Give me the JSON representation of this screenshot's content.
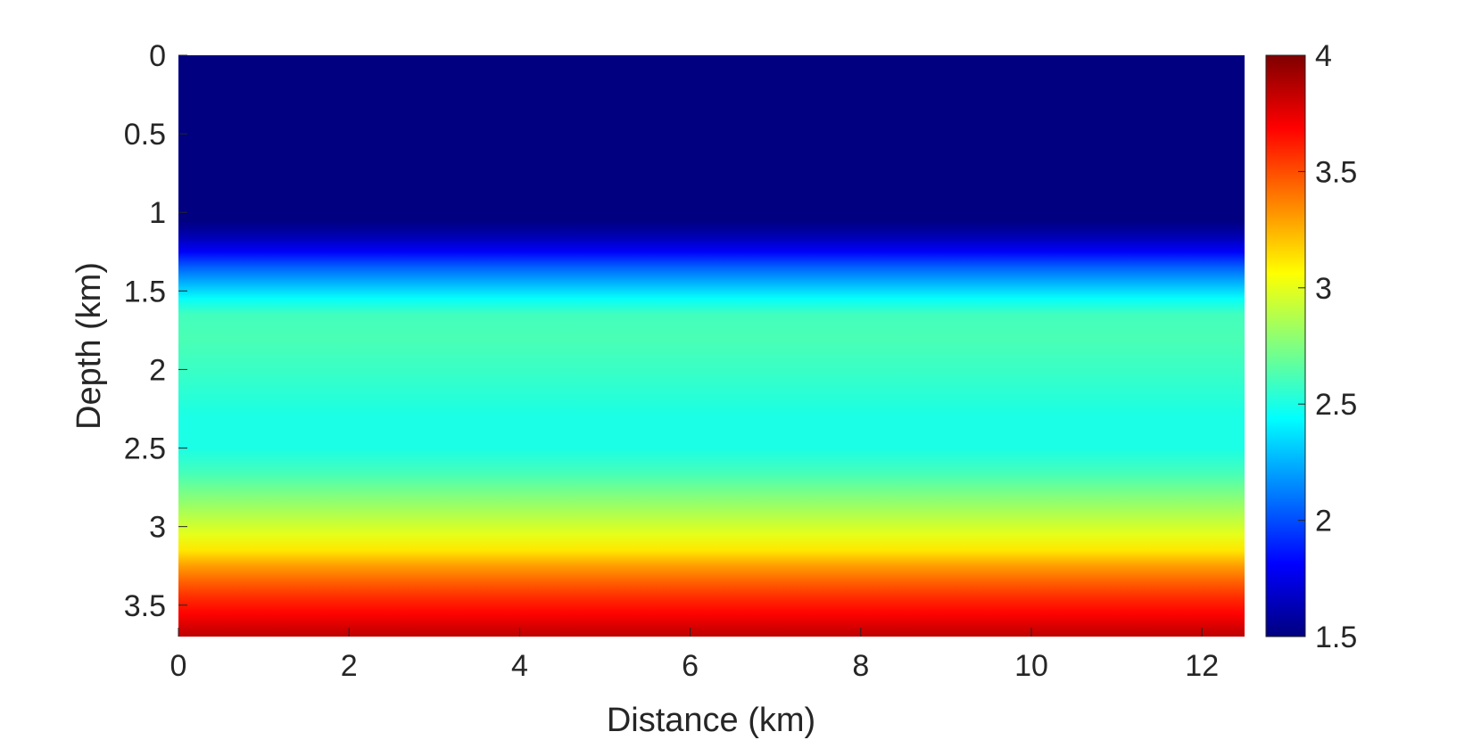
{
  "chart_data": {
    "type": "heatmap",
    "title": "",
    "xlabel": "Distance (km)",
    "ylabel": "Depth (km)",
    "xlim": [
      0,
      12.5
    ],
    "ylim": [
      0,
      3.7
    ],
    "y_reversed": true,
    "xticks": [
      0,
      2,
      4,
      6,
      8,
      10,
      12
    ],
    "xtick_labels": [
      "0",
      "2",
      "4",
      "6",
      "8",
      "10",
      "12"
    ],
    "yticks": [
      0,
      0.5,
      1,
      1.5,
      2,
      2.5,
      3,
      3.5
    ],
    "ytick_labels": [
      "0",
      "0.5",
      "1",
      "1.5",
      "2",
      "2.5",
      "3",
      "3.5"
    ],
    "colormap": "jet",
    "clim": [
      1.5,
      4
    ],
    "colorbar": {
      "position": "right",
      "ticks": [
        1.5,
        2,
        2.5,
        3,
        3.5,
        4
      ],
      "tick_labels": [
        "1.5",
        "2",
        "2.5",
        "3",
        "3.5",
        "4"
      ]
    },
    "laterally_uniform": true,
    "profile": {
      "depth": [
        0,
        1.05,
        1.15,
        1.25,
        1.35,
        1.45,
        1.55,
        1.65,
        1.8,
        2.0,
        2.3,
        2.5,
        2.65,
        2.8,
        2.95,
        3.05,
        3.15,
        3.25,
        3.35,
        3.45,
        3.55,
        3.65,
        3.7
      ],
      "value": [
        1.5,
        1.5,
        1.62,
        1.8,
        2.05,
        2.25,
        2.45,
        2.6,
        2.62,
        2.58,
        2.5,
        2.5,
        2.6,
        2.75,
        2.9,
        3.0,
        3.12,
        3.3,
        3.45,
        3.58,
        3.68,
        3.8,
        3.85
      ]
    }
  }
}
